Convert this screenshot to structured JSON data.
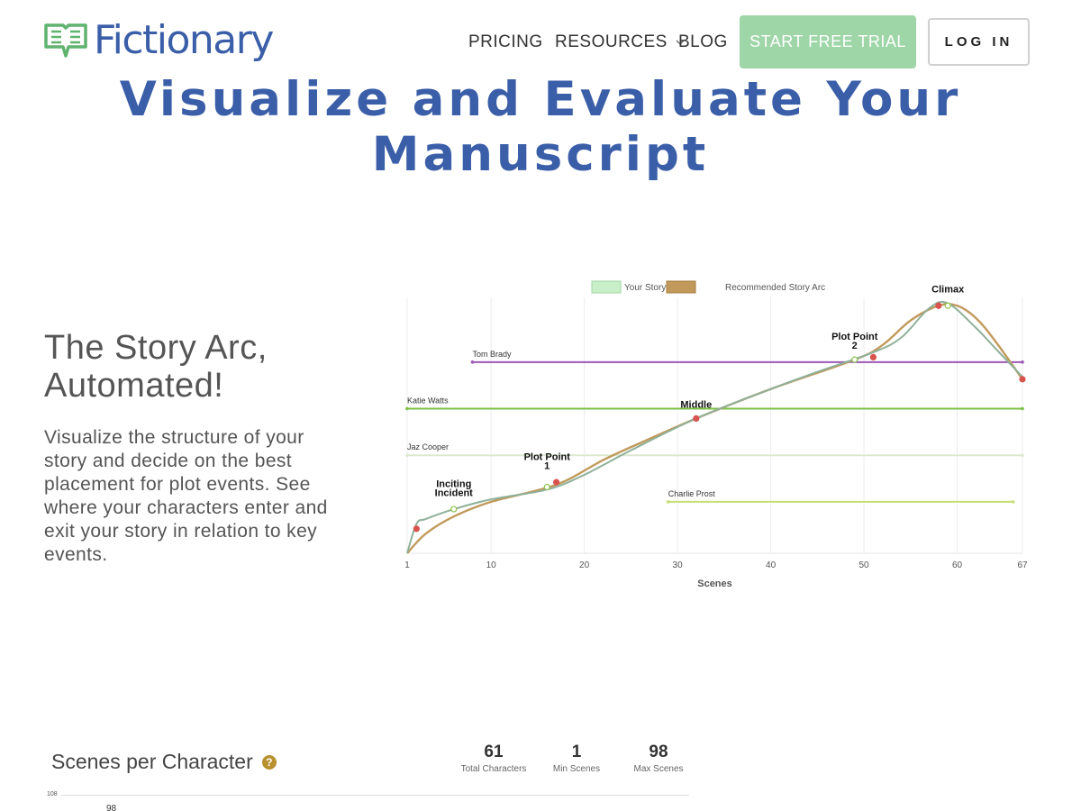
{
  "brand": {
    "name": "Fictionary",
    "color": "#3a5ea8"
  },
  "nav": {
    "pricing": "PRICING",
    "resources": "RESOURCES",
    "blog": "BLOG",
    "trial": "START FREE TRIAL",
    "login": "LOG IN"
  },
  "hero": {
    "title": "Visualize and Evaluate Your Manuscript"
  },
  "section": {
    "title_line1": "The Story Arc,",
    "title_line2": "Automated!",
    "description": "Visualize the structure of your story and decide on the best placement for plot events. See where your characters enter and exit your story in relation to key events."
  },
  "chart_data": {
    "type": "line",
    "xlabel": "Scenes",
    "ylabel": "",
    "xticks": [
      1,
      10,
      20,
      30,
      40,
      50,
      60,
      67
    ],
    "xlim": [
      1,
      67
    ],
    "ylim": [
      0,
      100
    ],
    "legend": "top-center",
    "grid": true,
    "series": [
      {
        "name": "Your Story Arc",
        "color": "#8fb09a",
        "x": [
          1,
          2,
          3,
          6,
          10,
          16,
          20,
          25,
          32,
          40,
          45,
          51,
          54,
          57,
          59,
          62,
          64,
          67
        ],
        "y": [
          0,
          12,
          14,
          18,
          22,
          26,
          32,
          42,
          55,
          67,
          74,
          82,
          88,
          100,
          102,
          92,
          84,
          72
        ]
      },
      {
        "name": "Recommended Story Arc",
        "color": "#c19a5b",
        "x": [
          1,
          3,
          6,
          10,
          17,
          22,
          26,
          32,
          40,
          49,
          52,
          55,
          58,
          60,
          62,
          64,
          67
        ],
        "y": [
          0,
          8,
          15,
          21,
          28,
          38,
          45,
          55,
          67,
          79,
          85,
          95,
          101,
          101,
          96,
          87,
          71
        ]
      }
    ],
    "characters": [
      {
        "name": "Tom Brady",
        "color": "#9b59b6",
        "y": 78,
        "start": 8,
        "end": 67
      },
      {
        "name": "Katie Watts",
        "color": "#7cc043",
        "y": 59,
        "start": 1,
        "end": 67
      },
      {
        "name": "Jaz Cooper",
        "color": "#dde8d0",
        "y": 40,
        "start": 1,
        "end": 67
      },
      {
        "name": "Charlie Prost",
        "color": "#c5e070",
        "y": 21,
        "start": 29,
        "end": 66
      }
    ],
    "annotations": [
      {
        "label_line1": "Inciting",
        "label_line2": "Incident",
        "x": 6,
        "y": 19
      },
      {
        "label_line1": "Plot Point",
        "label_line2": "1",
        "x": 16,
        "y": 30
      },
      {
        "label_line1": "Middle",
        "label_line2": "",
        "x": 32,
        "y": 55
      },
      {
        "label_line1": "Plot Point",
        "label_line2": "2",
        "x": 49,
        "y": 79
      },
      {
        "label_line1": "Climax",
        "label_line2": "",
        "x": 59,
        "y": 102
      }
    ],
    "markers": [
      {
        "x": 2,
        "y": 10,
        "color": "#d9534f"
      },
      {
        "x": 6,
        "y": 18,
        "color": "#8bc34a"
      },
      {
        "x": 16,
        "y": 27,
        "color": "#8bc34a"
      },
      {
        "x": 17,
        "y": 29,
        "color": "#d9534f"
      },
      {
        "x": 32,
        "y": 55,
        "color": "#d9534f"
      },
      {
        "x": 49,
        "y": 79,
        "color": "#8bc34a"
      },
      {
        "x": 51,
        "y": 80,
        "color": "#d9534f"
      },
      {
        "x": 58,
        "y": 101,
        "color": "#d9534f"
      },
      {
        "x": 59,
        "y": 101,
        "color": "#8bc34a"
      },
      {
        "x": 67,
        "y": 71,
        "color": "#d9534f"
      }
    ]
  },
  "scenes_per_character": {
    "title": "Scenes per Character",
    "stats": [
      {
        "value": "61",
        "label": "Total Characters"
      },
      {
        "value": "1",
        "label": "Min Scenes"
      },
      {
        "value": "98",
        "label": "Max Scenes"
      }
    ],
    "axis_top": "108",
    "peak": "98"
  }
}
